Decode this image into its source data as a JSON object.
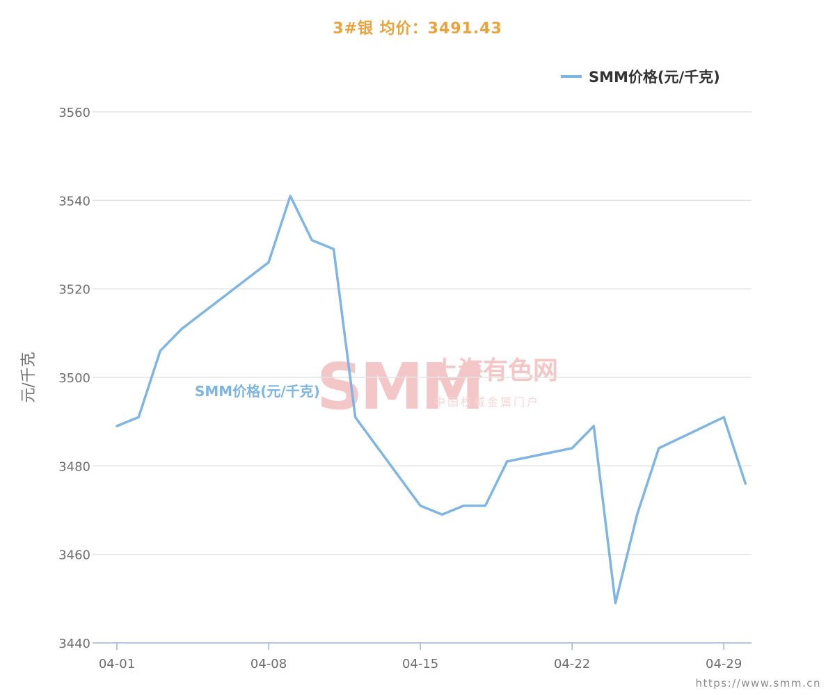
{
  "chart_data": {
    "type": "line",
    "title": "3#银 均价：3491.43",
    "ylabel": "元/千克",
    "ylim": [
      3440,
      3560
    ],
    "yticks": [
      3440,
      3460,
      3480,
      3500,
      3520,
      3540,
      3560
    ],
    "x_range": [
      "04-01",
      "04-30"
    ],
    "xtick_labels": [
      "04-01",
      "04-08",
      "04-15",
      "04-22",
      "04-29"
    ],
    "grid": true,
    "legend_position": "top-right",
    "series": [
      {
        "name": "SMM价格(元/千克)",
        "color": "#7eb5e2",
        "x": [
          "04-01",
          "04-02",
          "04-03",
          "04-04",
          "04-08",
          "04-09",
          "04-10",
          "04-11",
          "04-12",
          "04-15",
          "04-16",
          "04-17",
          "04-18",
          "04-19",
          "04-22",
          "04-23",
          "04-24",
          "04-25",
          "04-26",
          "04-29",
          "04-30"
        ],
        "values": [
          3489,
          3491,
          3506,
          3511,
          3526,
          3541,
          3531,
          3529,
          3491,
          3471,
          3469,
          3471,
          3471,
          3481,
          3484,
          3489,
          3449,
          3469,
          3484,
          3491,
          3476
        ]
      }
    ],
    "annotations": [
      {
        "text": "SMM价格(元/千克)"
      }
    ]
  },
  "watermark": {
    "logo": "SMM",
    "name": "上海有色网",
    "tagline": "中国权威金属门户"
  },
  "footer": {
    "url": "https://www.smm.cn"
  }
}
